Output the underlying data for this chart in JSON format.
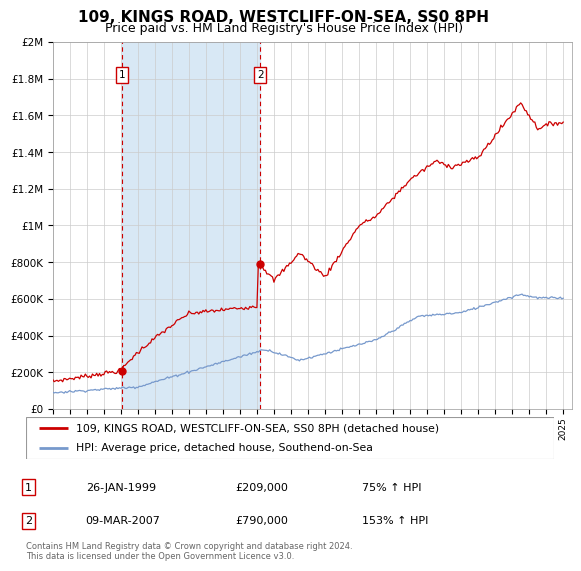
{
  "title": "109, KINGS ROAD, WESTCLIFF-ON-SEA, SS0 8PH",
  "subtitle": "Price paid vs. HM Land Registry's House Price Index (HPI)",
  "title_fontsize": 11,
  "subtitle_fontsize": 9,
  "legend_line1": "109, KINGS ROAD, WESTCLIFF-ON-SEA, SS0 8PH (detached house)",
  "legend_line2": "HPI: Average price, detached house, Southend-on-Sea",
  "footnote": "Contains HM Land Registry data © Crown copyright and database right 2024.\nThis data is licensed under the Open Government Licence v3.0.",
  "sale1_label": "1",
  "sale1_date": "26-JAN-1999",
  "sale1_price": "£209,000",
  "sale1_hpi": "75% ↑ HPI",
  "sale1_x": 1999.07,
  "sale1_y": 209000,
  "sale2_label": "2",
  "sale2_date": "09-MAR-2007",
  "sale2_price": "£790,000",
  "sale2_hpi": "153% ↑ HPI",
  "sale2_x": 2007.19,
  "sale2_y": 790000,
  "red_color": "#cc0000",
  "blue_color": "#7799cc",
  "background_color": "#ffffff",
  "grid_color": "#cccccc",
  "span_color": "#d8e8f5",
  "ylim": [
    0,
    2000000
  ],
  "xlim_start": 1995,
  "xlim_end": 2025.5
}
